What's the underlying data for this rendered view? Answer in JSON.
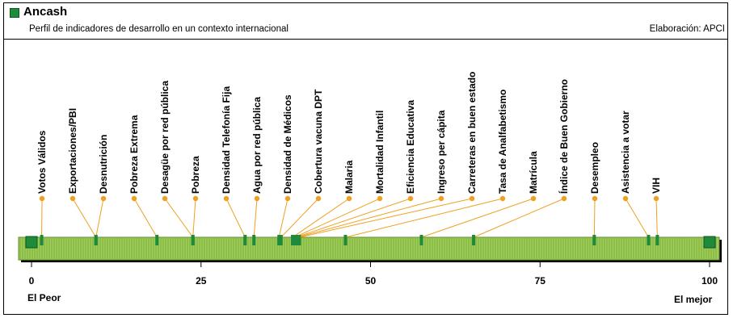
{
  "header": {
    "title": "Ancash",
    "subtitle": "Perfil de indicadores de desarrollo en un contexto internacional",
    "credit": "Elaboración: APCI"
  },
  "scale": {
    "left_label": "El Peor",
    "right_label": "El mejor"
  },
  "colors": {
    "bar": "#9ccc5a",
    "bar_stripe": "#7fae3a",
    "marker": "#1e8a3a",
    "leader": "#f0a020"
  },
  "chart_data": {
    "type": "scatter",
    "title": "Ancash",
    "xlim": [
      0,
      100
    ],
    "ticks": [
      0,
      25,
      50,
      75,
      100
    ],
    "tick_labels": [
      "0",
      "25",
      "50",
      "75",
      "100"
    ],
    "points": [
      {
        "label": "Votos Válidos",
        "value": 1.5
      },
      {
        "label": "Exportaciones/PBI",
        "value": 9.5
      },
      {
        "label": "Desnutrición",
        "value": 9.5
      },
      {
        "label": "Pobreza Extrema",
        "value": 18.5
      },
      {
        "label": "Desagüe por red pública",
        "value": 23.8
      },
      {
        "label": "Pobreza",
        "value": 23.8
      },
      {
        "label": "Densidad Telefonía Fija",
        "value": 31.5
      },
      {
        "label": "Agua por red pública",
        "value": 32.8
      },
      {
        "label": "Densidad de Médicos",
        "value": 36.5
      },
      {
        "label": "Cobertura vacuna DPT",
        "value": 36.8
      },
      {
        "label": "Malaria",
        "value": 38.5
      },
      {
        "label": "Mortalidad Infantil",
        "value": 38.8
      },
      {
        "label": "Eficiencia Educativa",
        "value": 39.0
      },
      {
        "label": "Ingreso per cápita",
        "value": 39.2
      },
      {
        "label": "Carreteras en buen estado",
        "value": 39.5
      },
      {
        "label": "Tasa de Analfabetismo",
        "value": 46.3
      },
      {
        "label": "Matrícula",
        "value": 57.5
      },
      {
        "label": "Índice de Buen Gobierno",
        "value": 65.2
      },
      {
        "label": "Desempleo",
        "value": 83.0
      },
      {
        "label": "Asistencia a votar",
        "value": 91.0
      },
      {
        "label": "VIH",
        "value": 92.3
      }
    ],
    "end_markers": [
      0,
      100
    ]
  }
}
